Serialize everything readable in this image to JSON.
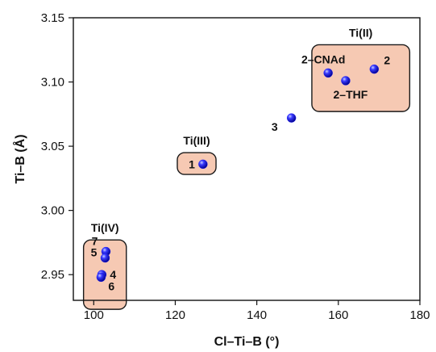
{
  "chart_data": {
    "type": "scatter",
    "title": "",
    "xlabel": "Cl–Ti–B (°)",
    "ylabel": "Ti–B (Å)",
    "xlim": [
      95,
      180
    ],
    "ylim": [
      2.93,
      3.15
    ],
    "xticks": [
      "100",
      "120",
      "140",
      "160",
      "180"
    ],
    "yticks": [
      "2.95",
      "3.00",
      "3.05",
      "3.10",
      "3.15"
    ],
    "grid": false,
    "colors": {
      "point": "#1a1aff",
      "box_fill": "#f6c9b3",
      "box_stroke": "#1a1a1a"
    },
    "groups": [
      {
        "label": "Ti(IV)",
        "x_range": [
          97.5,
          108
        ],
        "y_range": [
          2.923,
          2.977
        ]
      },
      {
        "label": "Ti(III)",
        "x_range": [
          120.5,
          130
        ],
        "y_range": [
          3.028,
          3.045
        ]
      },
      {
        "label": "Ti(II)",
        "x_range": [
          153.5,
          177.5
        ],
        "y_range": [
          3.077,
          3.129
        ]
      }
    ],
    "points": [
      {
        "label": "7",
        "x": 103.0,
        "y": 2.968
      },
      {
        "label": "5",
        "x": 102.8,
        "y": 2.963
      },
      {
        "label": "4",
        "x": 102.0,
        "y": 2.95
      },
      {
        "label": "6",
        "x": 101.8,
        "y": 2.948
      },
      {
        "label": "1",
        "x": 126.8,
        "y": 3.036
      },
      {
        "label": "3",
        "x": 148.5,
        "y": 3.072
      },
      {
        "label": "2–CNAd",
        "x": 157.5,
        "y": 3.107
      },
      {
        "label": "2–THF",
        "x": 161.8,
        "y": 3.101
      },
      {
        "label": "2",
        "x": 168.8,
        "y": 3.11
      }
    ]
  }
}
